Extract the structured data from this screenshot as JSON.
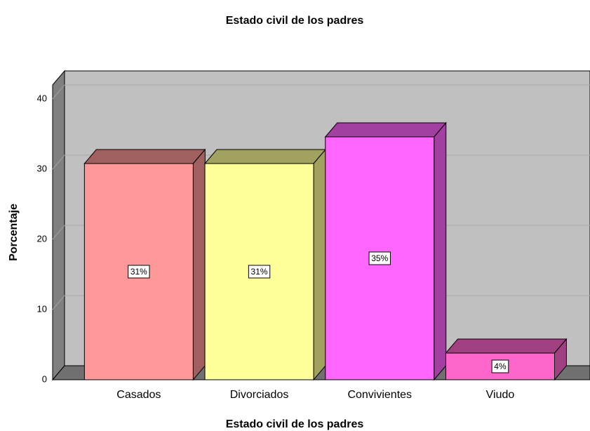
{
  "chart_data": {
    "type": "bar",
    "title": "Estado civil de los padres",
    "x_label": "Estado civil de los padres",
    "y_label": "Porcentaje",
    "categories": [
      "Casados",
      "Divorciados",
      "Convivientes",
      "Viudo"
    ],
    "values": [
      30.8,
      30.8,
      34.6,
      3.8
    ],
    "value_labels": [
      "31%",
      "31%",
      "35%",
      "4%"
    ],
    "colors": [
      "#ff9999",
      "#ffff99",
      "#ff66ff",
      "#ff66cc"
    ],
    "ylim": [
      0,
      42
    ],
    "yticks": [
      0,
      10,
      20,
      30,
      40
    ],
    "grid": true
  }
}
